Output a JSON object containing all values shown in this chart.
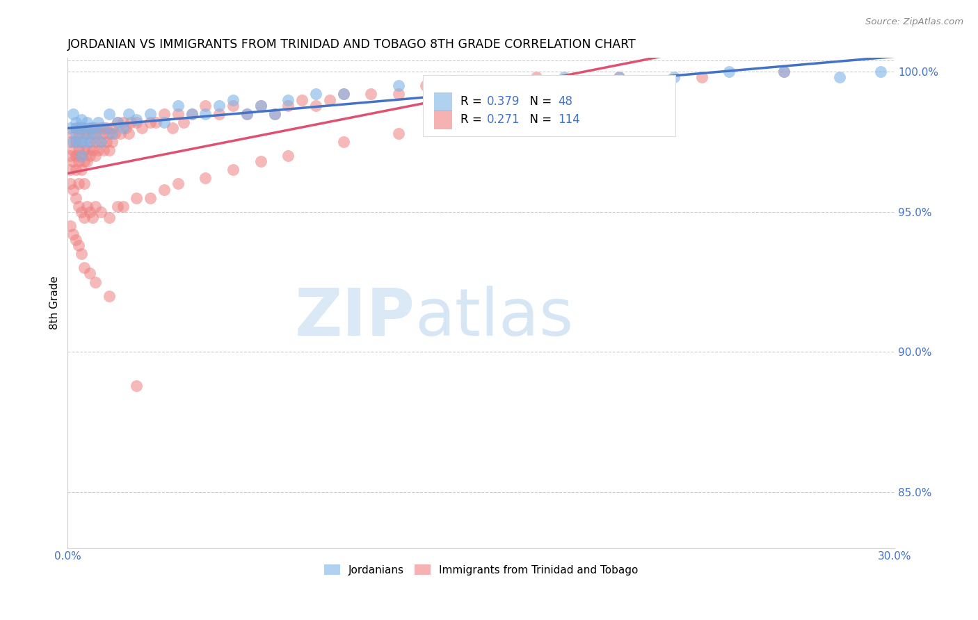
{
  "title": "JORDANIAN VS IMMIGRANTS FROM TRINIDAD AND TOBAGO 8TH GRADE CORRELATION CHART",
  "source": "Source: ZipAtlas.com",
  "ylabel": "8th Grade",
  "x_min": 0.0,
  "x_max": 0.3,
  "y_min": 0.83,
  "y_max": 1.005,
  "y_ticks": [
    0.85,
    0.9,
    0.95,
    1.0
  ],
  "y_tick_labels": [
    "85.0%",
    "90.0%",
    "95.0%",
    "100.0%"
  ],
  "r_jordanian": 0.379,
  "n_jordanian": 48,
  "r_trinidad": 0.271,
  "n_trinidad": 114,
  "blue_color": "#7EB3E8",
  "pink_color": "#F08080",
  "blue_line_color": "#4472C4",
  "pink_line_color": "#E05070",
  "legend_label_blue": "Jordanians",
  "legend_label_pink": "Immigrants from Trinidad and Tobago",
  "jordanian_x": [
    0.001,
    0.002,
    0.002,
    0.003,
    0.003,
    0.004,
    0.004,
    0.005,
    0.005,
    0.006,
    0.006,
    0.007,
    0.007,
    0.008,
    0.009,
    0.01,
    0.011,
    0.012,
    0.013,
    0.015,
    0.016,
    0.018,
    0.02,
    0.022,
    0.025,
    0.03,
    0.035,
    0.04,
    0.045,
    0.05,
    0.055,
    0.06,
    0.065,
    0.07,
    0.075,
    0.08,
    0.09,
    0.1,
    0.12,
    0.14,
    0.16,
    0.18,
    0.2,
    0.22,
    0.24,
    0.26,
    0.28,
    0.295
  ],
  "jordanian_y": [
    0.98,
    0.985,
    0.975,
    0.982,
    0.978,
    0.98,
    0.975,
    0.983,
    0.97,
    0.98,
    0.975,
    0.982,
    0.978,
    0.975,
    0.98,
    0.978,
    0.982,
    0.975,
    0.98,
    0.985,
    0.978,
    0.982,
    0.98,
    0.985,
    0.983,
    0.985,
    0.982,
    0.988,
    0.985,
    0.985,
    0.988,
    0.99,
    0.985,
    0.988,
    0.985,
    0.99,
    0.992,
    0.992,
    0.995,
    0.995,
    0.995,
    0.998,
    0.998,
    0.998,
    1.0,
    1.0,
    0.998,
    1.0
  ],
  "trinidad_x": [
    0.001,
    0.001,
    0.001,
    0.002,
    0.002,
    0.002,
    0.003,
    0.003,
    0.003,
    0.003,
    0.004,
    0.004,
    0.004,
    0.004,
    0.005,
    0.005,
    0.005,
    0.005,
    0.006,
    0.006,
    0.006,
    0.006,
    0.007,
    0.007,
    0.007,
    0.008,
    0.008,
    0.008,
    0.009,
    0.009,
    0.01,
    0.01,
    0.01,
    0.011,
    0.011,
    0.012,
    0.012,
    0.013,
    0.013,
    0.014,
    0.014,
    0.015,
    0.015,
    0.016,
    0.016,
    0.017,
    0.018,
    0.019,
    0.02,
    0.021,
    0.022,
    0.023,
    0.025,
    0.027,
    0.03,
    0.032,
    0.035,
    0.038,
    0.04,
    0.042,
    0.045,
    0.05,
    0.055,
    0.06,
    0.065,
    0.07,
    0.075,
    0.08,
    0.085,
    0.09,
    0.095,
    0.1,
    0.11,
    0.12,
    0.13,
    0.15,
    0.17,
    0.2,
    0.23,
    0.26,
    0.001,
    0.002,
    0.003,
    0.004,
    0.005,
    0.006,
    0.007,
    0.008,
    0.009,
    0.01,
    0.012,
    0.015,
    0.018,
    0.02,
    0.025,
    0.03,
    0.035,
    0.04,
    0.05,
    0.06,
    0.07,
    0.08,
    0.1,
    0.12,
    0.001,
    0.002,
    0.003,
    0.004,
    0.005,
    0.006,
    0.008,
    0.01,
    0.015,
    0.025
  ],
  "trinidad_y": [
    0.975,
    0.97,
    0.965,
    0.978,
    0.972,
    0.968,
    0.98,
    0.975,
    0.97,
    0.965,
    0.978,
    0.972,
    0.968,
    0.96,
    0.98,
    0.975,
    0.97,
    0.965,
    0.978,
    0.972,
    0.968,
    0.96,
    0.978,
    0.972,
    0.968,
    0.98,
    0.975,
    0.97,
    0.978,
    0.972,
    0.98,
    0.975,
    0.97,
    0.978,
    0.972,
    0.98,
    0.975,
    0.978,
    0.972,
    0.98,
    0.975,
    0.978,
    0.972,
    0.98,
    0.975,
    0.978,
    0.982,
    0.978,
    0.982,
    0.98,
    0.978,
    0.982,
    0.982,
    0.98,
    0.982,
    0.982,
    0.985,
    0.98,
    0.985,
    0.982,
    0.985,
    0.988,
    0.985,
    0.988,
    0.985,
    0.988,
    0.985,
    0.988,
    0.99,
    0.988,
    0.99,
    0.992,
    0.992,
    0.992,
    0.995,
    0.995,
    0.998,
    0.998,
    0.998,
    1.0,
    0.96,
    0.958,
    0.955,
    0.952,
    0.95,
    0.948,
    0.952,
    0.95,
    0.948,
    0.952,
    0.95,
    0.948,
    0.952,
    0.952,
    0.955,
    0.955,
    0.958,
    0.96,
    0.962,
    0.965,
    0.968,
    0.97,
    0.975,
    0.978,
    0.945,
    0.942,
    0.94,
    0.938,
    0.935,
    0.93,
    0.928,
    0.925,
    0.92,
    0.888
  ]
}
